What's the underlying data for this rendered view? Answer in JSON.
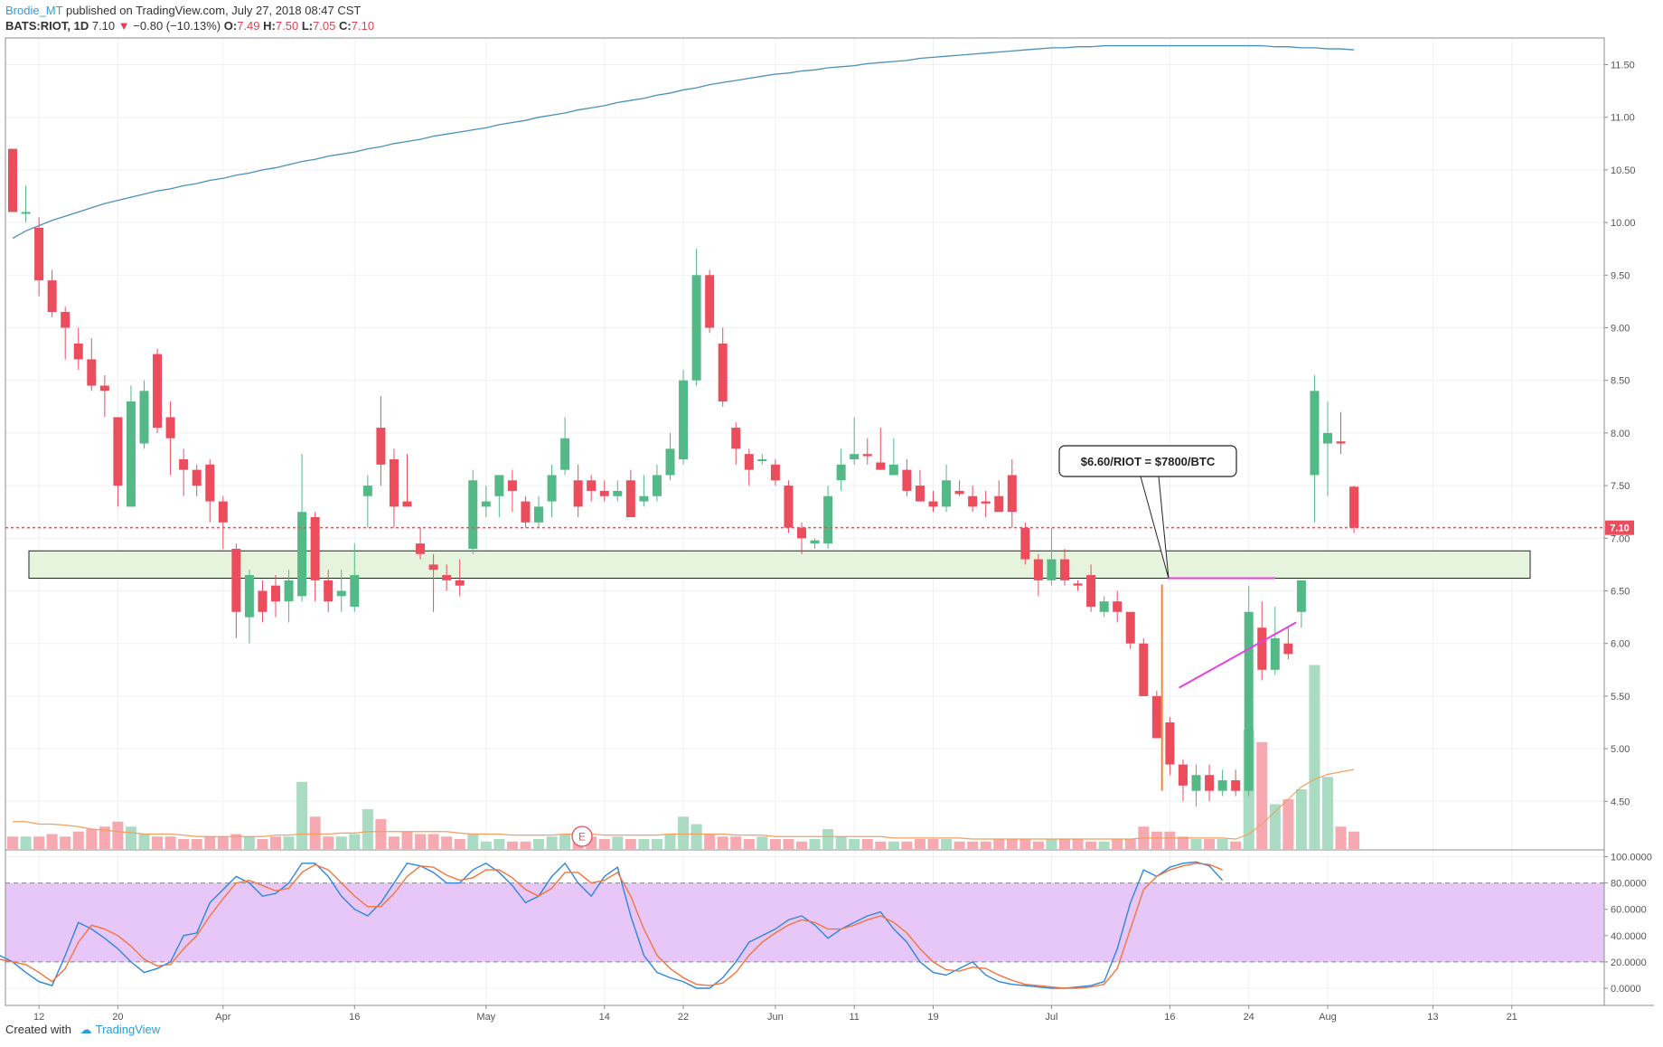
{
  "header": {
    "author": "Brodie_MT",
    "published": "published on TradingView.com, July 27, 2018 08:47 CST",
    "symbol": "BATS:RIOT, 1D",
    "last": "7.10",
    "change": "−0.80 (−10.13%)",
    "o_label": "O:",
    "o": "7.49",
    "h_label": "H:",
    "h": "7.50",
    "l_label": "L:",
    "l": "7.05",
    "c_label": "C:",
    "c": "7.10"
  },
  "footer": {
    "created_with": "Created with",
    "brand": "TradingView"
  },
  "colors": {
    "up": "#53b987",
    "down": "#eb4d5c",
    "up_vol": "#a9dcc3",
    "down_vol": "#f6a9b0",
    "ma200": "#4a90b8",
    "vol_ma": "#f0a060",
    "stoch_k": "#2e86de",
    "stoch_d": "#f4743b",
    "zone_fill": "#e6f4de",
    "stoch_band": "#e6c7f7",
    "annotation_pink": "#e83ee6",
    "annotation_orange": "#f0882a"
  },
  "chart_data": {
    "type": "candlestick",
    "symbol": "BATS:RIOT",
    "timeframe": "1D",
    "ylim": [
      4.2,
      11.7
    ],
    "y_ticks": [
      "11.50",
      "11.00",
      "10.50",
      "10.00",
      "9.50",
      "9.00",
      "8.50",
      "8.00",
      "7.50",
      "7.00",
      "6.50",
      "6.00",
      "5.50",
      "5.00",
      "4.50"
    ],
    "x_ticks": [
      {
        "label": "12",
        "day": 2
      },
      {
        "label": "20",
        "day": 8
      },
      {
        "label": "Apr",
        "day": 16
      },
      {
        "label": "16",
        "day": 26
      },
      {
        "label": "May",
        "day": 36
      },
      {
        "label": "14",
        "day": 45
      },
      {
        "label": "22",
        "day": 51
      },
      {
        "label": "Jun",
        "day": 58
      },
      {
        "label": "11",
        "day": 64
      },
      {
        "label": "19",
        "day": 70
      },
      {
        "label": "Jul",
        "day": 79
      },
      {
        "label": "16",
        "day": 88
      },
      {
        "label": "24",
        "day": 94
      },
      {
        "label": "Aug",
        "day": 100
      },
      {
        "label": "13",
        "day": 108
      },
      {
        "label": "21",
        "day": 114
      }
    ],
    "last_price_label": "7.10",
    "candles": [
      [
        10.7,
        10.1,
        10.7,
        10.1
      ],
      [
        10.1,
        10.1,
        10.35,
        10.0
      ],
      [
        9.95,
        9.45,
        10.05,
        9.3
      ],
      [
        9.45,
        9.15,
        9.55,
        9.1
      ],
      [
        9.15,
        9.0,
        9.2,
        8.7
      ],
      [
        8.85,
        8.7,
        9.0,
        8.6
      ],
      [
        8.7,
        8.45,
        8.9,
        8.4
      ],
      [
        8.45,
        8.4,
        8.55,
        8.15
      ],
      [
        8.15,
        7.5,
        8.15,
        7.3
      ],
      [
        7.3,
        8.3,
        8.45,
        7.3
      ],
      [
        7.9,
        8.4,
        8.5,
        7.85
      ],
      [
        8.75,
        8.05,
        8.8,
        8.0
      ],
      [
        8.15,
        7.95,
        8.3,
        7.6
      ],
      [
        7.75,
        7.65,
        7.85,
        7.4
      ],
      [
        7.65,
        7.5,
        7.7,
        7.4
      ],
      [
        7.7,
        7.35,
        7.75,
        7.15
      ],
      [
        7.35,
        7.15,
        7.4,
        6.9
      ],
      [
        6.9,
        6.3,
        6.95,
        6.05
      ],
      [
        6.25,
        6.65,
        6.7,
        6.0
      ],
      [
        6.5,
        6.3,
        6.6,
        6.2
      ],
      [
        6.55,
        6.4,
        6.65,
        6.25
      ],
      [
        6.4,
        6.6,
        6.7,
        6.2
      ],
      [
        6.45,
        7.25,
        7.8,
        6.4
      ],
      [
        7.2,
        6.6,
        7.25,
        6.4
      ],
      [
        6.6,
        6.4,
        6.7,
        6.3
      ],
      [
        6.45,
        6.5,
        6.7,
        6.3
      ],
      [
        6.35,
        6.65,
        6.95,
        6.3
      ],
      [
        7.4,
        7.5,
        7.6,
        7.1
      ],
      [
        8.05,
        7.7,
        8.35,
        7.5
      ],
      [
        7.75,
        7.3,
        7.85,
        7.1
      ],
      [
        7.35,
        7.3,
        7.8,
        7.3
      ],
      [
        6.95,
        6.85,
        7.1,
        6.8
      ],
      [
        6.75,
        6.7,
        6.85,
        6.3
      ],
      [
        6.65,
        6.6,
        6.75,
        6.5
      ],
      [
        6.6,
        6.55,
        6.8,
        6.45
      ],
      [
        6.9,
        7.55,
        7.65,
        6.85
      ],
      [
        7.3,
        7.35,
        7.5,
        7.2
      ],
      [
        7.4,
        7.6,
        7.6,
        7.2
      ],
      [
        7.55,
        7.45,
        7.65,
        7.25
      ],
      [
        7.35,
        7.15,
        7.4,
        7.1
      ],
      [
        7.15,
        7.3,
        7.4,
        7.1
      ],
      [
        7.35,
        7.6,
        7.7,
        7.2
      ],
      [
        7.65,
        7.95,
        8.15,
        7.6
      ],
      [
        7.55,
        7.3,
        7.7,
        7.2
      ],
      [
        7.55,
        7.45,
        7.6,
        7.35
      ],
      [
        7.45,
        7.4,
        7.55,
        7.35
      ],
      [
        7.4,
        7.45,
        7.55,
        7.35
      ],
      [
        7.55,
        7.2,
        7.65,
        7.2
      ],
      [
        7.35,
        7.4,
        7.6,
        7.3
      ],
      [
        7.4,
        7.6,
        7.7,
        7.35
      ],
      [
        7.6,
        7.85,
        8.0,
        7.55
      ],
      [
        7.75,
        8.5,
        8.6,
        7.7
      ],
      [
        8.5,
        9.5,
        9.75,
        8.45
      ],
      [
        9.5,
        9.0,
        9.55,
        8.95
      ],
      [
        8.85,
        8.3,
        9.0,
        8.25
      ],
      [
        8.05,
        7.85,
        8.1,
        7.7
      ],
      [
        7.8,
        7.65,
        7.85,
        7.5
      ],
      [
        7.75,
        7.75,
        7.8,
        7.7
      ],
      [
        7.7,
        7.55,
        7.75,
        7.5
      ],
      [
        7.5,
        7.1,
        7.55,
        7.05
      ],
      [
        7.1,
        7.0,
        7.15,
        6.85
      ],
      [
        6.95,
        6.98,
        7.0,
        6.9
      ],
      [
        6.95,
        7.4,
        7.5,
        6.9
      ],
      [
        7.55,
        7.7,
        7.85,
        7.45
      ],
      [
        7.75,
        7.8,
        8.15,
        7.7
      ],
      [
        7.8,
        7.78,
        7.95,
        7.7
      ],
      [
        7.72,
        7.65,
        8.05,
        7.65
      ],
      [
        7.6,
        7.7,
        7.95,
        7.6
      ],
      [
        7.65,
        7.45,
        7.75,
        7.4
      ],
      [
        7.5,
        7.35,
        7.65,
        7.35
      ],
      [
        7.35,
        7.3,
        7.45,
        7.25
      ],
      [
        7.3,
        7.55,
        7.7,
        7.25
      ],
      [
        7.45,
        7.42,
        7.55,
        7.4
      ],
      [
        7.4,
        7.3,
        7.5,
        7.25
      ],
      [
        7.35,
        7.33,
        7.45,
        7.2
      ],
      [
        7.4,
        7.25,
        7.55,
        7.25
      ],
      [
        7.6,
        7.25,
        7.75,
        7.1
      ],
      [
        7.1,
        6.8,
        7.15,
        6.75
      ],
      [
        6.8,
        6.6,
        6.85,
        6.45
      ],
      [
        6.6,
        6.8,
        7.1,
        6.55
      ],
      [
        6.8,
        6.6,
        6.9,
        6.55
      ],
      [
        6.57,
        6.55,
        6.6,
        6.5
      ],
      [
        6.65,
        6.35,
        6.75,
        6.3
      ],
      [
        6.3,
        6.4,
        6.45,
        6.25
      ],
      [
        6.4,
        6.3,
        6.5,
        6.2
      ],
      [
        6.3,
        6.0,
        6.3,
        5.95
      ],
      [
        6.0,
        5.5,
        6.05,
        5.5
      ],
      [
        5.5,
        5.1,
        5.55,
        5.1
      ],
      [
        5.25,
        4.85,
        5.3,
        4.75
      ],
      [
        4.85,
        4.65,
        4.9,
        4.5
      ],
      [
        4.6,
        4.75,
        4.85,
        4.45
      ],
      [
        4.75,
        4.6,
        4.85,
        4.5
      ],
      [
        4.6,
        4.7,
        4.8,
        4.55
      ],
      [
        4.7,
        4.6,
        4.8,
        4.55
      ],
      [
        4.6,
        6.3,
        6.55,
        4.55
      ],
      [
        6.15,
        5.75,
        6.4,
        5.65
      ],
      [
        5.75,
        6.05,
        6.35,
        5.7
      ],
      [
        6.0,
        5.9,
        6.15,
        5.85
      ],
      [
        6.3,
        6.6,
        6.6,
        6.15
      ],
      [
        7.6,
        8.4,
        8.55,
        7.15
      ],
      [
        7.9,
        8.0,
        8.3,
        7.4
      ],
      [
        7.92,
        7.9,
        8.2,
        7.8
      ],
      [
        7.49,
        7.1,
        7.5,
        7.05
      ]
    ],
    "volume_relative": [
      0.25,
      0.25,
      0.25,
      0.3,
      0.25,
      0.35,
      0.4,
      0.45,
      0.55,
      0.45,
      0.3,
      0.25,
      0.25,
      0.2,
      0.2,
      0.25,
      0.25,
      0.3,
      0.25,
      0.2,
      0.25,
      0.25,
      1.35,
      0.65,
      0.25,
      0.25,
      0.3,
      0.8,
      0.6,
      0.25,
      0.35,
      0.3,
      0.3,
      0.25,
      0.2,
      0.3,
      0.15,
      0.2,
      0.15,
      0.15,
      0.2,
      0.25,
      0.3,
      0.2,
      0.25,
      0.2,
      0.25,
      0.2,
      0.2,
      0.2,
      0.3,
      0.65,
      0.5,
      0.3,
      0.25,
      0.25,
      0.2,
      0.25,
      0.2,
      0.2,
      0.15,
      0.2,
      0.4,
      0.25,
      0.2,
      0.2,
      0.15,
      0.15,
      0.15,
      0.2,
      0.2,
      0.2,
      0.15,
      0.15,
      0.15,
      0.2,
      0.2,
      0.2,
      0.15,
      0.2,
      0.2,
      0.2,
      0.15,
      0.15,
      0.2,
      0.2,
      0.45,
      0.35,
      0.35,
      0.25,
      0.2,
      0.2,
      0.2,
      0.15,
      2.4,
      2.15,
      0.9,
      1.0,
      1.2,
      3.7,
      1.45,
      0.45,
      0.35
    ],
    "ma200": [
      9.85,
      9.92,
      9.97,
      10.02,
      10.06,
      10.1,
      10.14,
      10.18,
      10.21,
      10.24,
      10.27,
      10.3,
      10.32,
      10.35,
      10.37,
      10.4,
      10.42,
      10.45,
      10.47,
      10.5,
      10.52,
      10.55,
      10.58,
      10.6,
      10.63,
      10.65,
      10.67,
      10.7,
      10.72,
      10.75,
      10.77,
      10.79,
      10.82,
      10.84,
      10.86,
      10.88,
      10.9,
      10.93,
      10.95,
      10.97,
      11.0,
      11.02,
      11.04,
      11.07,
      11.09,
      11.11,
      11.14,
      11.16,
      11.18,
      11.21,
      11.23,
      11.26,
      11.28,
      11.31,
      11.33,
      11.35,
      11.37,
      11.39,
      11.41,
      11.42,
      11.44,
      11.45,
      11.47,
      11.48,
      11.49,
      11.51,
      11.52,
      11.53,
      11.54,
      11.56,
      11.57,
      11.58,
      11.59,
      11.6,
      11.61,
      11.62,
      11.63,
      11.64,
      11.65,
      11.66,
      11.66,
      11.67,
      11.67,
      11.68,
      11.68,
      11.68,
      11.68,
      11.68,
      11.68,
      11.68,
      11.68,
      11.68,
      11.68,
      11.68,
      11.68,
      11.68,
      11.67,
      11.67,
      11.66,
      11.66,
      11.65,
      11.65,
      11.64
    ],
    "stoch": {
      "ylim": [
        0,
        100
      ],
      "ticks": [
        "100.0000",
        "80.0000",
        "60.0000",
        "40.0000",
        "20.0000",
        "0.0000"
      ],
      "bands": [
        20,
        80
      ],
      "k": [
        25,
        20,
        12,
        5,
        2,
        25,
        50,
        45,
        38,
        30,
        20,
        12,
        15,
        20,
        40,
        42,
        65,
        75,
        85,
        80,
        70,
        72,
        80,
        95,
        95,
        85,
        70,
        60,
        55,
        65,
        80,
        95,
        93,
        88,
        80,
        80,
        90,
        95,
        88,
        78,
        65,
        70,
        85,
        95,
        80,
        70,
        85,
        92,
        55,
        25,
        12,
        8,
        5,
        0,
        0,
        8,
        20,
        35,
        40,
        45,
        52,
        55,
        48,
        38,
        45,
        50,
        55,
        58,
        45,
        35,
        20,
        12,
        10,
        15,
        20,
        10,
        5,
        3,
        2,
        1,
        0,
        0,
        1,
        2,
        5,
        30,
        65,
        90,
        85,
        92,
        95,
        96,
        93,
        82
      ],
      "d": [
        22,
        20,
        18,
        12,
        5,
        15,
        35,
        48,
        45,
        40,
        32,
        22,
        17,
        18,
        30,
        40,
        55,
        68,
        80,
        82,
        78,
        74,
        76,
        88,
        94,
        90,
        80,
        70,
        62,
        62,
        72,
        85,
        93,
        92,
        86,
        82,
        84,
        90,
        90,
        84,
        75,
        70,
        76,
        88,
        88,
        80,
        82,
        88,
        70,
        45,
        25,
        15,
        8,
        3,
        2,
        4,
        12,
        25,
        35,
        42,
        48,
        52,
        50,
        45,
        45,
        48,
        52,
        55,
        50,
        42,
        30,
        20,
        14,
        13,
        16,
        15,
        10,
        6,
        3,
        2,
        1,
        0,
        0,
        1,
        3,
        15,
        45,
        75,
        85,
        90,
        93,
        95,
        94,
        90
      ]
    },
    "vol_ma": [
      0.55,
      0.55,
      0.5,
      0.5,
      0.48,
      0.45,
      0.4,
      0.38,
      0.35,
      0.33,
      0.3,
      0.3,
      0.3,
      0.28,
      0.25,
      0.25,
      0.25,
      0.25,
      0.25,
      0.25,
      0.28,
      0.28,
      0.3,
      0.3,
      0.3,
      0.32,
      0.32,
      0.35,
      0.35,
      0.35,
      0.35,
      0.35,
      0.35,
      0.35,
      0.32,
      0.3,
      0.3,
      0.3,
      0.28,
      0.28,
      0.28,
      0.28,
      0.3,
      0.3,
      0.3,
      0.28,
      0.28,
      0.28,
      0.28,
      0.28,
      0.3,
      0.3,
      0.3,
      0.3,
      0.3,
      0.28,
      0.28,
      0.28,
      0.25,
      0.25,
      0.25,
      0.25,
      0.25,
      0.25,
      0.25,
      0.25,
      0.25,
      0.22,
      0.22,
      0.22,
      0.22,
      0.22,
      0.22,
      0.2,
      0.2,
      0.2,
      0.2,
      0.2,
      0.2,
      0.2,
      0.2,
      0.2,
      0.2,
      0.2,
      0.2,
      0.2,
      0.22,
      0.22,
      0.22,
      0.22,
      0.22,
      0.22,
      0.22,
      0.2,
      0.3,
      0.5,
      0.75,
      1.0,
      1.25,
      1.4,
      1.5,
      1.55,
      1.6
    ],
    "annotations": {
      "zone": [
        6.62,
        6.88
      ],
      "callout": "$6.60/RIOT = $7800/BTC"
    }
  }
}
